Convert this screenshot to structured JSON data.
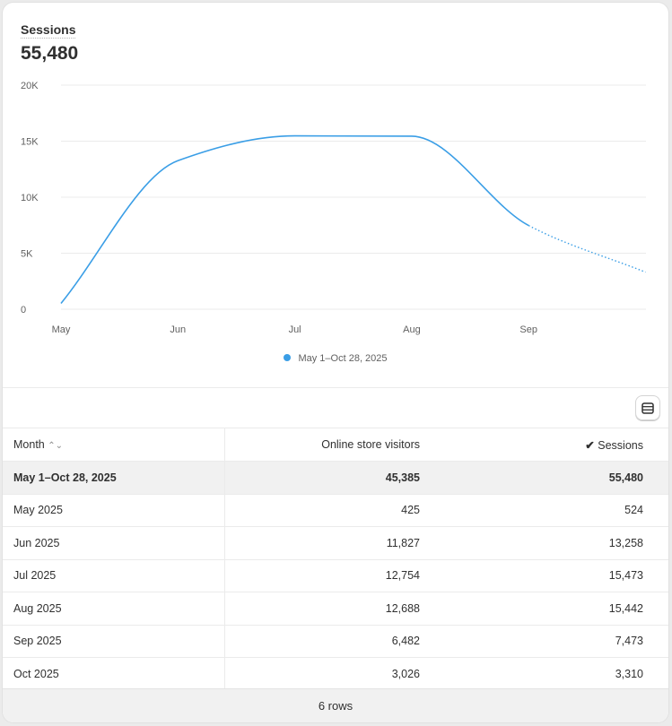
{
  "header": {
    "metric_title": "Sessions",
    "metric_value": "55,480"
  },
  "chart_data": {
    "type": "line",
    "categories": [
      "May",
      "Jun",
      "Jul",
      "Aug",
      "Sep",
      "Oct"
    ],
    "x_tick_labels": [
      "May",
      "Jun",
      "Jul",
      "Aug",
      "Sep"
    ],
    "y_ticks": [
      0,
      5000,
      10000,
      15000,
      20000
    ],
    "y_tick_labels": [
      "0",
      "5K",
      "10K",
      "15K",
      "20K"
    ],
    "ylim": [
      0,
      20000
    ],
    "grid": true,
    "legend_position": "bottom",
    "series": [
      {
        "name": "May 1–Oct 28, 2025",
        "values": [
          524,
          13258,
          15473,
          15442,
          7473,
          3310
        ],
        "color": "#3a9ee6",
        "dotted_from": "Sep"
      }
    ]
  },
  "table": {
    "columns": [
      "Month",
      "Online store visitors",
      "Sessions"
    ],
    "total": [
      "May 1–Oct 28, 2025",
      "45,385",
      "55,480"
    ],
    "rows": [
      [
        "May 2025",
        "425",
        "524"
      ],
      [
        "Jun 2025",
        "11,827",
        "13,258"
      ],
      [
        "Jul 2025",
        "12,754",
        "15,473"
      ],
      [
        "Aug 2025",
        "12,688",
        "15,442"
      ],
      [
        "Sep 2025",
        "6,482",
        "7,473"
      ],
      [
        "Oct 2025",
        "3,026",
        "3,310"
      ]
    ],
    "footer": "6 rows"
  }
}
